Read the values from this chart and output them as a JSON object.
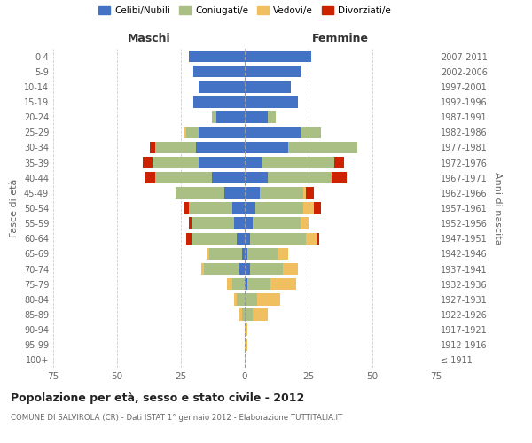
{
  "age_groups": [
    "100+",
    "95-99",
    "90-94",
    "85-89",
    "80-84",
    "75-79",
    "70-74",
    "65-69",
    "60-64",
    "55-59",
    "50-54",
    "45-49",
    "40-44",
    "35-39",
    "30-34",
    "25-29",
    "20-24",
    "15-19",
    "10-14",
    "5-9",
    "0-4"
  ],
  "birth_years": [
    "≤ 1911",
    "1912-1916",
    "1917-1921",
    "1922-1926",
    "1927-1931",
    "1932-1936",
    "1937-1941",
    "1942-1946",
    "1947-1951",
    "1952-1956",
    "1957-1961",
    "1962-1966",
    "1967-1971",
    "1972-1976",
    "1977-1981",
    "1982-1986",
    "1987-1991",
    "1992-1996",
    "1997-2001",
    "2002-2006",
    "2007-2011"
  ],
  "male": {
    "celibi": [
      0,
      0,
      0,
      0,
      0,
      0,
      2,
      1,
      3,
      4,
      5,
      8,
      13,
      18,
      19,
      18,
      11,
      20,
      18,
      20,
      22
    ],
    "coniugati": [
      0,
      0,
      0,
      1,
      3,
      5,
      14,
      13,
      18,
      17,
      17,
      19,
      22,
      18,
      16,
      5,
      2,
      0,
      0,
      0,
      0
    ],
    "vedovi": [
      0,
      0,
      0,
      1,
      1,
      2,
      1,
      1,
      0,
      0,
      0,
      0,
      0,
      0,
      0,
      1,
      0,
      0,
      0,
      0,
      0
    ],
    "divorziati": [
      0,
      0,
      0,
      0,
      0,
      0,
      0,
      0,
      2,
      1,
      2,
      0,
      4,
      4,
      2,
      0,
      0,
      0,
      0,
      0,
      0
    ]
  },
  "female": {
    "nubili": [
      0,
      0,
      0,
      0,
      0,
      1,
      2,
      1,
      2,
      3,
      4,
      6,
      9,
      7,
      17,
      22,
      9,
      21,
      18,
      22,
      26
    ],
    "coniugate": [
      0,
      0,
      0,
      3,
      5,
      9,
      13,
      12,
      22,
      19,
      19,
      17,
      25,
      28,
      27,
      8,
      3,
      0,
      0,
      0,
      0
    ],
    "vedove": [
      0,
      1,
      1,
      6,
      9,
      10,
      6,
      4,
      4,
      3,
      4,
      1,
      0,
      0,
      0,
      0,
      0,
      0,
      0,
      0,
      0
    ],
    "divorziate": [
      0,
      0,
      0,
      0,
      0,
      0,
      0,
      0,
      1,
      0,
      3,
      3,
      6,
      4,
      0,
      0,
      0,
      0,
      0,
      0,
      0
    ]
  },
  "colors": {
    "celibi": "#4472C4",
    "coniugati": "#AABF84",
    "vedovi": "#F0C060",
    "divorziati": "#CC2200"
  },
  "xlim": 75,
  "title": "Popolazione per età, sesso e stato civile - 2012",
  "subtitle": "COMUNE DI SALVIROLA (CR) - Dati ISTAT 1° gennaio 2012 - Elaborazione TUTTITALIA.IT",
  "ylabel_left": "Fasce di età",
  "ylabel_right": "Anni di nascita",
  "legend_labels": [
    "Celibi/Nubili",
    "Coniugati/e",
    "Vedovi/e",
    "Divorziati/e"
  ]
}
